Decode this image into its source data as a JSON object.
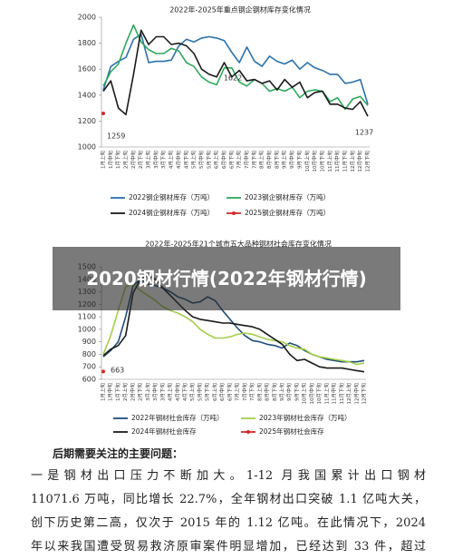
{
  "chart_data": [
    {
      "type": "line",
      "title": "2022年-2025年重点钢企钢材库存变化情况",
      "categories": [
        "1月上旬",
        "1月中旬",
        "1月下旬",
        "2月上旬",
        "2月中旬",
        "2月下旬",
        "3月上旬",
        "3月中旬",
        "3月下旬",
        "4月上旬",
        "4月中旬",
        "4月下旬",
        "5月上旬",
        "5月中旬",
        "5月下旬",
        "6月上旬",
        "6月中旬",
        "6月下旬",
        "7月上旬",
        "7月中旬",
        "7月下旬",
        "8月上旬",
        "8月中旬",
        "8月下旬",
        "9月上旬",
        "9月中旬",
        "9月下旬",
        "10月上旬",
        "10月中旬",
        "10月下旬",
        "11月上旬",
        "11月中旬",
        "11月下旬",
        "12月上旬",
        "12月中旬",
        "12月下旬"
      ],
      "ylim": [
        1000,
        2000
      ],
      "yticks": [
        1000,
        1200,
        1400,
        1600,
        1800,
        2000
      ],
      "series": [
        {
          "name": "2022钢企钢材库存（万吨）",
          "color": "#2b72ad",
          "values": [
            1440,
            1620,
            1660,
            1690,
            1830,
            1870,
            1650,
            1660,
            1660,
            1670,
            1780,
            1830,
            1810,
            1840,
            1850,
            1840,
            1820,
            1730,
            1650,
            1770,
            1660,
            1622,
            1700,
            1660,
            1640,
            1670,
            1600,
            1650,
            1610,
            1590,
            1560,
            1560,
            1490,
            1500,
            1520,
            1330
          ]
        },
        {
          "name": "2023钢企钢材库存（万吨）",
          "color": "#2fa85c",
          "values": [
            1470,
            1580,
            1640,
            1800,
            1940,
            1810,
            1750,
            1720,
            1720,
            1760,
            1740,
            1650,
            1620,
            1540,
            1500,
            1480,
            1610,
            1610,
            1500,
            1470,
            1520,
            1490,
            1430,
            1450,
            1430,
            1460,
            1380,
            1430,
            1440,
            1430,
            1350,
            1380,
            1290,
            1370,
            1390,
            1320
          ]
        },
        {
          "name": "2024钢企钢材库存（万吨）",
          "color": "#1a1a1a",
          "values": [
            1430,
            1510,
            1300,
            1250,
            1560,
            1900,
            1790,
            1850,
            1850,
            1790,
            1800,
            1780,
            1720,
            1600,
            1560,
            1540,
            1650,
            1540,
            1590,
            1510,
            1520,
            1490,
            1510,
            1440,
            1520,
            1460,
            1500,
            1380,
            1420,
            1430,
            1330,
            1330,
            1300,
            1290,
            1350,
            1237
          ]
        },
        {
          "name": "2025钢企钢材库存（万吨）",
          "color": "#d62728",
          "marker": true,
          "values": [
            1259,
            null,
            null,
            null,
            null,
            null,
            null,
            null,
            null,
            null,
            null,
            null,
            null,
            null,
            null,
            null,
            null,
            null,
            null,
            null,
            null,
            null,
            null,
            null,
            null,
            null,
            null,
            null,
            null,
            null,
            null,
            null,
            null,
            null,
            null,
            null
          ]
        }
      ],
      "annotations": [
        "1622",
        "1259",
        "1237"
      ]
    },
    {
      "type": "line",
      "title": "2022年-2025年21个城市五大品种钢材社会库存变化情况",
      "categories": [
        "1月上旬",
        "1月中旬",
        "1月下旬",
        "2月上旬",
        "2月中旬",
        "2月下旬",
        "3月上旬",
        "3月中旬",
        "3月下旬",
        "4月上旬",
        "4月中旬",
        "4月下旬",
        "5月上旬",
        "5月中旬",
        "5月下旬",
        "6月上旬",
        "6月中旬",
        "6月下旬",
        "7月上旬",
        "7月中旬",
        "7月下旬",
        "8月上旬",
        "8月中旬",
        "8月下旬",
        "9月上旬",
        "9月中旬",
        "9月下旬",
        "10月上旬",
        "10月中旬",
        "10月下旬",
        "11月上旬",
        "11月中旬",
        "11月下旬",
        "12月上旬",
        "12月中旬",
        "12月下旬"
      ],
      "ylim": [
        600,
        1500
      ],
      "yticks": [
        600,
        700,
        800,
        900,
        1000,
        1100,
        1200,
        1300,
        1400,
        1500
      ],
      "series": [
        {
          "name": "2022年钢材社会库存（万吨）",
          "color": "#1f4e79",
          "values": [
            780,
            830,
            900,
            1100,
            1350,
            1400,
            1360,
            1350,
            1330,
            1300,
            1260,
            1240,
            1210,
            1220,
            1260,
            1230,
            1150,
            1080,
            1010,
            950,
            910,
            900,
            880,
            870,
            850,
            890,
            870,
            830,
            800,
            780,
            760,
            750,
            740,
            740,
            740,
            750
          ]
        },
        {
          "name": "2023年钢材社会库存（万吨）",
          "color": "#a3cf4a",
          "values": [
            800,
            950,
            1150,
            1340,
            1360,
            1310,
            1270,
            1230,
            1180,
            1150,
            1130,
            1100,
            1060,
            1000,
            960,
            930,
            930,
            940,
            960,
            970,
            960,
            940,
            920,
            910,
            900,
            870,
            850,
            840,
            800,
            780,
            770,
            760,
            750,
            740,
            720,
            730
          ]
        },
        {
          "name": "2024年钢材社会库存",
          "color": "#1a1a1a",
          "values": [
            790,
            840,
            870,
            950,
            1290,
            1400,
            1430,
            1400,
            1330,
            1270,
            1210,
            1150,
            1100,
            1080,
            1070,
            1060,
            1050,
            1050,
            1040,
            1030,
            1020,
            1000,
            960,
            920,
            880,
            800,
            750,
            760,
            730,
            700,
            690,
            690,
            690,
            680,
            670,
            660
          ]
        },
        {
          "name": "2025年钢材社会库存",
          "color": "#d62728",
          "marker": true,
          "values": [
            663,
            null,
            null,
            null,
            null,
            null,
            null,
            null,
            null,
            null,
            null,
            null,
            null,
            null,
            null,
            null,
            null,
            null,
            null,
            null,
            null,
            null,
            null,
            null,
            null,
            null,
            null,
            null,
            null,
            null,
            null,
            null,
            null,
            null,
            null,
            null
          ]
        }
      ],
      "annotations": [
        "663"
      ]
    }
  ],
  "banner": {
    "title": "2020钢材行情(2022年钢材行情)"
  },
  "notes": {
    "heading": "后期需要关注的主要问题：",
    "lines": [
      "一是钢材出口压力不断加大。1-12 月我国累计出口钢材",
      "11071.6 万吨，同比增长 22.7%，全年钢材出口突破 1.1 亿吨大关，",
      "创下历史第二高，仅次于 2015 年的 1.12 亿吨。在此情况下，2024",
      "年以来我国遭受贸易救济原审案件明显增加，已经达到 33 件，超过"
    ]
  }
}
